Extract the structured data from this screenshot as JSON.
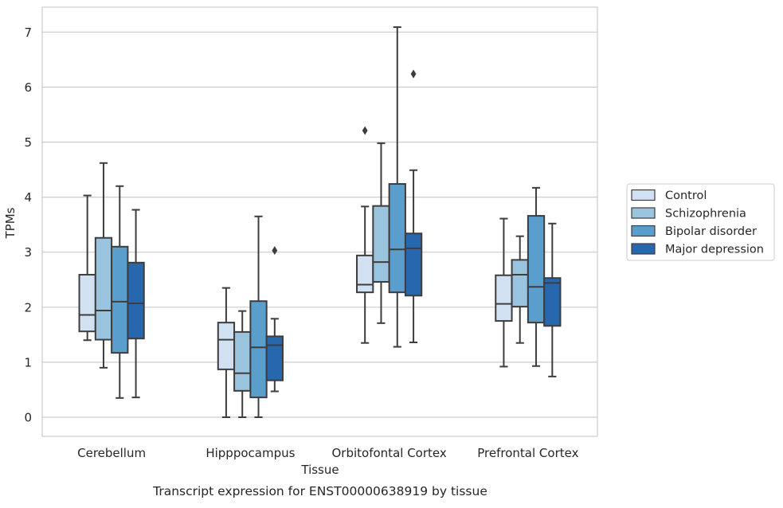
{
  "chart_data": {
    "type": "boxplot",
    "caption": "Transcript expression for ENST00000638919 by tissue",
    "xlabel": "Tissue",
    "ylabel": "TPMs",
    "ylim": [
      -0.35,
      7.45
    ],
    "yticks": [
      0,
      1,
      2,
      3,
      4,
      5,
      6,
      7
    ],
    "grid": "horizontal",
    "legend_position": "right",
    "categories": [
      "Cerebellum",
      "Hipppocampus",
      "Orbitofontal Cortex",
      "Prefrontal Cortex"
    ],
    "series": [
      {
        "name": "Control",
        "color": "#d1e1f1",
        "boxes": [
          {
            "whislo": 1.4,
            "q1": 1.56,
            "med": 1.86,
            "q3": 2.59,
            "whishi": 4.03,
            "fliers": []
          },
          {
            "whislo": 0.0,
            "q1": 0.87,
            "med": 1.41,
            "q3": 1.72,
            "whishi": 2.35,
            "fliers": []
          },
          {
            "whislo": 1.35,
            "q1": 2.27,
            "med": 2.41,
            "q3": 2.94,
            "whishi": 3.83,
            "fliers": [
              5.21
            ]
          },
          {
            "whislo": 0.92,
            "q1": 1.75,
            "med": 2.06,
            "q3": 2.58,
            "whishi": 3.61,
            "fliers": []
          }
        ]
      },
      {
        "name": "Schizophrenia",
        "color": "#9ac3dd",
        "boxes": [
          {
            "whislo": 0.9,
            "q1": 1.41,
            "med": 1.94,
            "q3": 3.26,
            "whishi": 4.62,
            "fliers": []
          },
          {
            "whislo": 0.0,
            "q1": 0.48,
            "med": 0.8,
            "q3": 1.55,
            "whishi": 1.93,
            "fliers": []
          },
          {
            "whislo": 1.71,
            "q1": 2.46,
            "med": 2.82,
            "q3": 3.84,
            "whishi": 4.98,
            "fliers": []
          },
          {
            "whislo": 1.35,
            "q1": 2.01,
            "med": 2.59,
            "q3": 2.86,
            "whishi": 3.29,
            "fliers": []
          }
        ]
      },
      {
        "name": "Bipolar disorder",
        "color": "#5a9ecd",
        "boxes": [
          {
            "whislo": 0.35,
            "q1": 1.17,
            "med": 2.1,
            "q3": 3.1,
            "whishi": 4.2,
            "fliers": []
          },
          {
            "whislo": 0.0,
            "q1": 0.36,
            "med": 1.27,
            "q3": 2.11,
            "whishi": 3.65,
            "fliers": []
          },
          {
            "whislo": 1.28,
            "q1": 2.27,
            "med": 3.05,
            "q3": 4.24,
            "whishi": 7.09,
            "fliers": []
          },
          {
            "whislo": 0.93,
            "q1": 1.72,
            "med": 2.37,
            "q3": 3.66,
            "whishi": 4.17,
            "fliers": []
          }
        ]
      },
      {
        "name": "Major depression",
        "color": "#2767ae",
        "boxes": [
          {
            "whislo": 0.36,
            "q1": 1.43,
            "med": 2.07,
            "q3": 2.81,
            "whishi": 3.77,
            "fliers": []
          },
          {
            "whislo": 0.47,
            "q1": 0.67,
            "med": 1.31,
            "q3": 1.47,
            "whishi": 1.79,
            "fliers": [
              3.03
            ]
          },
          {
            "whislo": 1.36,
            "q1": 2.21,
            "med": 3.07,
            "q3": 3.34,
            "whishi": 4.49,
            "fliers": [
              6.24
            ]
          },
          {
            "whislo": 0.74,
            "q1": 1.66,
            "med": 2.44,
            "q3": 2.53,
            "whishi": 3.52,
            "fliers": []
          }
        ]
      }
    ]
  }
}
